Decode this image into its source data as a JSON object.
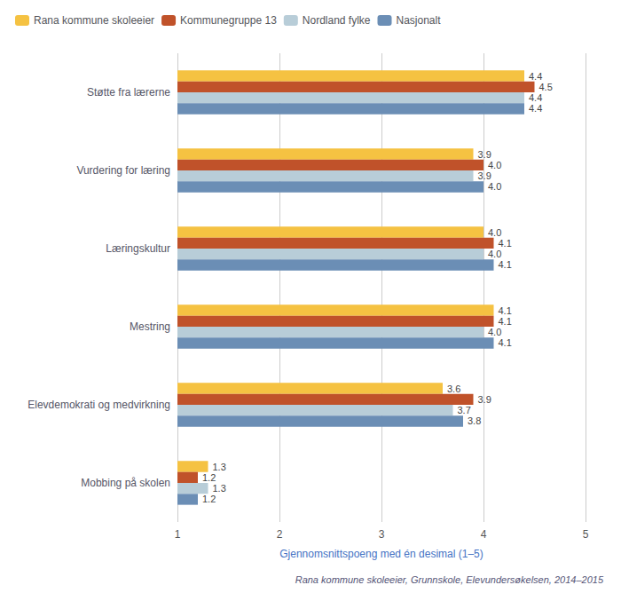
{
  "chart_data": {
    "type": "bar",
    "orientation": "horizontal",
    "categories": [
      "Støtte fra lærerne",
      "Vurdering for læring",
      "Læringskultur",
      "Mestring",
      "Elevdemokrati og medvirkning",
      "Mobbing på skolen"
    ],
    "series": [
      {
        "name": "Rana kommune skoleeier",
        "color": "#F5C242",
        "values": [
          4.4,
          3.9,
          4.0,
          4.1,
          3.6,
          1.3
        ],
        "value_labels": [
          "4.4",
          "3.9",
          "4.0",
          "4.1",
          "3.6",
          "1.3"
        ]
      },
      {
        "name": "Kommunegruppe 13",
        "color": "#C0522A",
        "values": [
          4.5,
          4.0,
          4.1,
          4.1,
          3.9,
          1.2
        ],
        "value_labels": [
          "4.5",
          "4.0",
          "4.1",
          "4.1",
          "3.9",
          "1.2"
        ]
      },
      {
        "name": "Nordland fylke",
        "color": "#B8CDD8",
        "values": [
          4.4,
          3.9,
          4.0,
          4.0,
          3.7,
          1.3
        ],
        "value_labels": [
          "4.4",
          "3.9",
          "4.0",
          "4.0",
          "3.7",
          "1.3"
        ]
      },
      {
        "name": "Nasjonalt",
        "color": "#6B8EB5",
        "values": [
          4.4,
          4.0,
          4.1,
          4.1,
          3.8,
          1.2
        ],
        "value_labels": [
          "4.4",
          "4.0",
          "4.1",
          "4.1",
          "3.8",
          "1.2"
        ]
      }
    ],
    "xlabel": "Gjennomsnittspoeng med én desimal (1–5)",
    "xlim": [
      1,
      5
    ],
    "xticks": [
      1,
      2,
      3,
      4,
      5
    ],
    "grid": true,
    "legend": "upper left",
    "data_labels": true,
    "annotations": [
      "Rana kommune skoleeier, Grunnskole, Elevundersøkelsen, 2014–2015"
    ]
  }
}
